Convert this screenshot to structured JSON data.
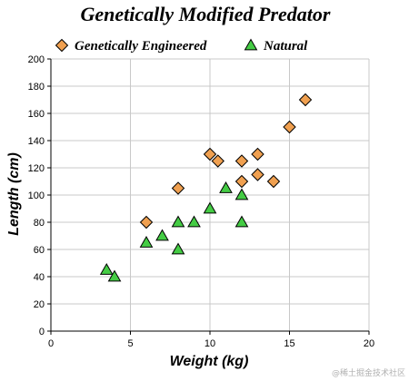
{
  "chart_data": {
    "type": "scatter",
    "title": "Genetically Modified Predator",
    "xlabel": "Weight (kg)",
    "ylabel": "Length (cm)",
    "xlim": [
      0,
      20
    ],
    "ylim": [
      0,
      200
    ],
    "xticks": [
      0,
      5,
      10,
      15,
      20
    ],
    "yticks": [
      0,
      20,
      40,
      60,
      80,
      100,
      120,
      140,
      160,
      180,
      200
    ],
    "grid": true,
    "legend_position": "top",
    "series": [
      {
        "name": "Genetically Engineered",
        "marker": "diamond",
        "color": "#f0a050",
        "points": [
          {
            "x": 6,
            "y": 80
          },
          {
            "x": 8,
            "y": 105
          },
          {
            "x": 10,
            "y": 130
          },
          {
            "x": 10.5,
            "y": 125
          },
          {
            "x": 12,
            "y": 125
          },
          {
            "x": 12,
            "y": 110
          },
          {
            "x": 13,
            "y": 130
          },
          {
            "x": 13,
            "y": 115
          },
          {
            "x": 14,
            "y": 110
          },
          {
            "x": 15,
            "y": 150
          },
          {
            "x": 16,
            "y": 170
          }
        ]
      },
      {
        "name": "Natural",
        "marker": "triangle",
        "color": "#44cc44",
        "points": [
          {
            "x": 3.5,
            "y": 45
          },
          {
            "x": 4,
            "y": 40
          },
          {
            "x": 6,
            "y": 65
          },
          {
            "x": 7,
            "y": 70
          },
          {
            "x": 8,
            "y": 80
          },
          {
            "x": 8,
            "y": 60
          },
          {
            "x": 9,
            "y": 80
          },
          {
            "x": 10,
            "y": 90
          },
          {
            "x": 11,
            "y": 105
          },
          {
            "x": 12,
            "y": 100
          },
          {
            "x": 12,
            "y": 80
          }
        ]
      }
    ]
  },
  "watermark": "@稀土掘金技术社区"
}
